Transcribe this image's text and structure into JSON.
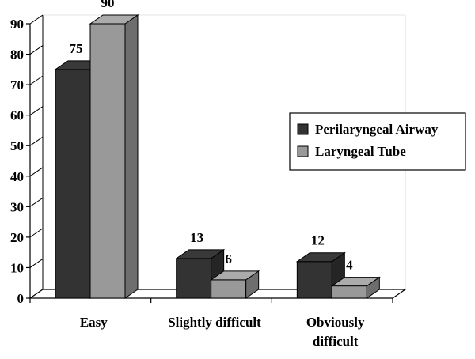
{
  "chart_data": {
    "type": "bar",
    "categories": [
      [
        "Easy"
      ],
      [
        "Slightly difficult"
      ],
      [
        "Obviously",
        "difficult"
      ]
    ],
    "series": [
      {
        "name": "Perilaryngeal Airway",
        "values": [
          75,
          13,
          12
        ],
        "color": "#333333"
      },
      {
        "name": "Laryngeal Tube",
        "values": [
          90,
          6,
          4
        ],
        "color": "#999999"
      }
    ],
    "ylim": [
      0,
      90
    ],
    "yticks": [
      0,
      10,
      20,
      30,
      40,
      50,
      60,
      70,
      80,
      90
    ],
    "legend_position": "right",
    "grid": false,
    "style": "3d"
  }
}
